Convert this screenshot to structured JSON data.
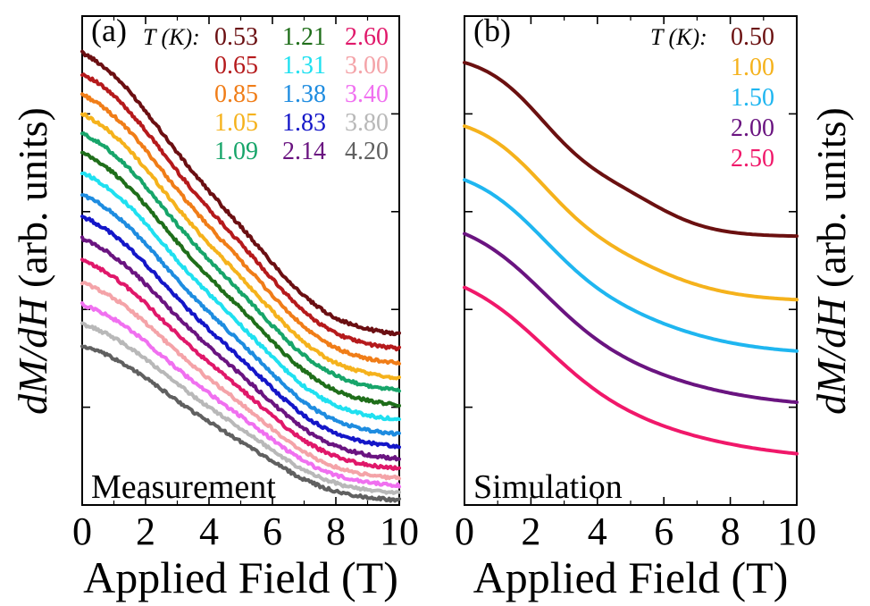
{
  "chart_data": [
    {
      "type": "line",
      "panel_label": "(a)",
      "corner_text": "Measurement",
      "ylabel_parts": [
        "dM/dH",
        " (arb. units)"
      ],
      "xlabel": "Applied Field (T)",
      "xlim": [
        0,
        10
      ],
      "xticks": [
        0,
        2,
        4,
        6,
        8,
        10
      ],
      "ylim": [
        0,
        1
      ],
      "yticks_visible_labels": false,
      "legend_title": "T (K):",
      "legend_placement": "top",
      "series": [
        {
          "name": "0.53",
          "color": "#6b0f12",
          "y0": 0.925,
          "y10": 0.35
        },
        {
          "name": "0.65",
          "color": "#b51a1c",
          "y0": 0.882,
          "y10": 0.32
        },
        {
          "name": "0.85",
          "color": "#f07d18",
          "y0": 0.84,
          "y10": 0.29
        },
        {
          "name": "1.05",
          "color": "#f5b21c",
          "y0": 0.8,
          "y10": 0.26
        },
        {
          "name": "1.09",
          "color": "#17a56a",
          "y0": 0.76,
          "y10": 0.235
        },
        {
          "name": "1.21",
          "color": "#1f6e1a",
          "y0": 0.72,
          "y10": 0.205
        },
        {
          "name": "1.31",
          "color": "#1fe0f0",
          "y0": 0.68,
          "y10": 0.175
        },
        {
          "name": "1.38",
          "color": "#1e8ce0",
          "y0": 0.635,
          "y10": 0.145
        },
        {
          "name": "1.83",
          "color": "#1416c8",
          "y0": 0.59,
          "y10": 0.12
        },
        {
          "name": "2.14",
          "color": "#6a1480",
          "y0": 0.545,
          "y10": 0.095
        },
        {
          "name": "2.60",
          "color": "#e0186a",
          "y0": 0.5,
          "y10": 0.075
        },
        {
          "name": "3.00",
          "color": "#f4a3a8",
          "y0": 0.455,
          "y10": 0.055
        },
        {
          "name": "3.40",
          "color": "#f070f0",
          "y0": 0.41,
          "y10": 0.04
        },
        {
          "name": "3.80",
          "color": "#b8b8b8",
          "y0": 0.37,
          "y10": 0.025
        },
        {
          "name": "4.20",
          "color": "#606060",
          "y0": 0.325,
          "y10": 0.01
        }
      ]
    },
    {
      "type": "line",
      "panel_label": "(b)",
      "corner_text": "Simulation",
      "ylabel_parts": [
        "dM/dH",
        " (arb. units)"
      ],
      "xlabel": "Applied Field (T)",
      "xlim": [
        0,
        10
      ],
      "xticks": [
        0,
        2,
        4,
        6,
        8,
        10
      ],
      "ylim": [
        0,
        1
      ],
      "yticks_visible_labels": false,
      "legend_title": "T (K):",
      "legend_placement": "top-right",
      "series": [
        {
          "name": "0.50",
          "color": "#6b1010",
          "y0": 0.905,
          "y10": 0.55
        },
        {
          "name": "1.00",
          "color": "#f5b21c",
          "y0": 0.775,
          "y10": 0.42
        },
        {
          "name": "1.50",
          "color": "#1fb6f0",
          "y0": 0.665,
          "y10": 0.315
        },
        {
          "name": "2.00",
          "color": "#6a1480",
          "y0": 0.555,
          "y10": 0.21
        },
        {
          "name": "2.50",
          "color": "#f0186a",
          "y0": 0.445,
          "y10": 0.105
        }
      ]
    }
  ]
}
